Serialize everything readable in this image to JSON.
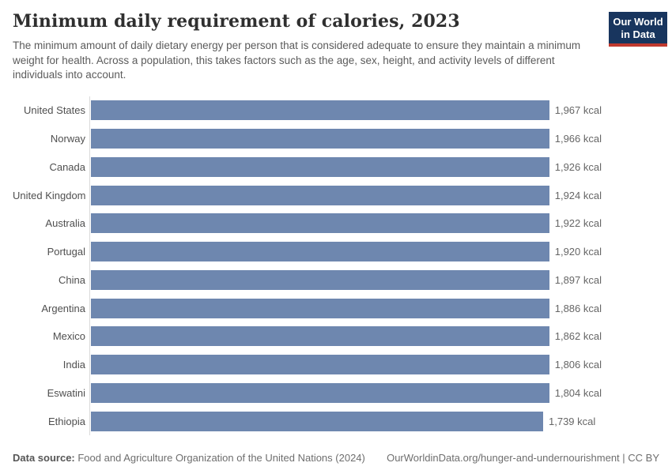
{
  "header": {
    "title": "Minimum daily requirement of calories, 2023",
    "subtitle": "The minimum amount of daily dietary energy per person that is considered adequate to ensure they maintain a minimum weight for health. Across a population, this takes factors such as the age, sex, height, and activity levels of different individuals into account.",
    "logo": {
      "line1": "Our World",
      "line2": "in Data"
    }
  },
  "chart_data": {
    "type": "bar",
    "orientation": "horizontal",
    "title": "Minimum daily requirement of calories, 2023",
    "categories": [
      "United States",
      "Norway",
      "Canada",
      "United Kingdom",
      "Australia",
      "Portugal",
      "China",
      "Argentina",
      "Mexico",
      "India",
      "Eswatini",
      "Ethiopia"
    ],
    "values": [
      1967,
      1966,
      1926,
      1924,
      1922,
      1920,
      1897,
      1886,
      1862,
      1806,
      1804,
      1739
    ],
    "value_labels": [
      "1,967 kcal",
      "1,966 kcal",
      "1,926 kcal",
      "1,924 kcal",
      "1,922 kcal",
      "1,920 kcal",
      "1,897 kcal",
      "1,886 kcal",
      "1,862 kcal",
      "1,806 kcal",
      "1,804 kcal",
      "1,739 kcal"
    ],
    "unit": "kcal",
    "xlim": [
      0,
      1967
    ],
    "bar_color": "#6e87af",
    "grid": false,
    "legend": false,
    "value_labels_position": "end-of-bar"
  },
  "footer": {
    "source_label": "Data source:",
    "source_text": " Food and Agriculture Organization of the United Nations (2024)",
    "link_text": "OurWorldinData.org/hunger-and-undernourishment | CC BY"
  }
}
